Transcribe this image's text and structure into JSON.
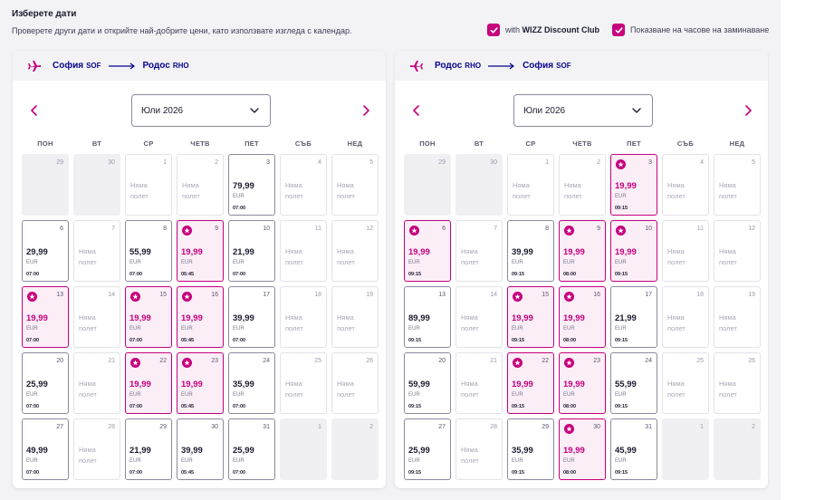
{
  "header": {
    "title": "Изберете дати",
    "subtitle": "Проверете други дати и открийте най-добрите цени, като използвате изгледа с календар.",
    "options": [
      {
        "prefix": "with ",
        "bold": "WIZZ Discount Club",
        "checked": true
      },
      {
        "prefix": "Показване на часове на заминаване",
        "bold": "",
        "checked": true
      }
    ]
  },
  "weekdays": [
    "ПОН",
    "ВТ",
    "СР",
    "ЧЕТВ",
    "ПЕТ",
    "СЪБ",
    "НЕД"
  ],
  "no_flight": [
    "Няма",
    "полет"
  ],
  "colors": {
    "accent": "#c6007e",
    "brand": "#06038d"
  },
  "panels": [
    {
      "from": "София",
      "from_code": "SOF",
      "to": "Родос",
      "to_code": "RHO",
      "plane_icon": "plane-takeoff-icon",
      "month": "Юли 2026",
      "days": [
        {
          "n": "29",
          "other": true
        },
        {
          "n": "30",
          "other": true
        },
        {
          "n": "1"
        },
        {
          "n": "2"
        },
        {
          "n": "3",
          "price": "79,99",
          "cur": "EUR",
          "time": "07:00"
        },
        {
          "n": "4"
        },
        {
          "n": "5"
        },
        {
          "n": "6",
          "price": "29,99",
          "cur": "EUR",
          "time": "07:00"
        },
        {
          "n": "7"
        },
        {
          "n": "8",
          "price": "55,99",
          "cur": "EUR",
          "time": "07:00"
        },
        {
          "n": "9",
          "price": "19,99",
          "cur": "EUR",
          "time": "05:45",
          "disc": true
        },
        {
          "n": "10",
          "price": "21,99",
          "cur": "EUR",
          "time": "07:00"
        },
        {
          "n": "11"
        },
        {
          "n": "12"
        },
        {
          "n": "13",
          "price": "19,99",
          "cur": "EUR",
          "time": "07:00",
          "disc": true
        },
        {
          "n": "14"
        },
        {
          "n": "15",
          "price": "19,99",
          "cur": "EUR",
          "time": "07:00",
          "disc": true
        },
        {
          "n": "16",
          "price": "19,99",
          "cur": "EUR",
          "time": "05:45",
          "disc": true
        },
        {
          "n": "17",
          "price": "39,99",
          "cur": "EUR",
          "time": "07:00"
        },
        {
          "n": "18"
        },
        {
          "n": "19"
        },
        {
          "n": "20",
          "price": "25,99",
          "cur": "EUR",
          "time": "07:00"
        },
        {
          "n": "21"
        },
        {
          "n": "22",
          "price": "19,99",
          "cur": "EUR",
          "time": "07:00",
          "disc": true
        },
        {
          "n": "23",
          "price": "19,99",
          "cur": "EUR",
          "time": "05:45",
          "disc": true
        },
        {
          "n": "24",
          "price": "35,99",
          "cur": "EUR",
          "time": "07:00"
        },
        {
          "n": "25"
        },
        {
          "n": "26"
        },
        {
          "n": "27",
          "price": "49,99",
          "cur": "EUR",
          "time": "07:00"
        },
        {
          "n": "28"
        },
        {
          "n": "29",
          "price": "21,99",
          "cur": "EUR",
          "time": "07:00"
        },
        {
          "n": "30",
          "price": "39,99",
          "cur": "EUR",
          "time": "05:45"
        },
        {
          "n": "31",
          "price": "25,99",
          "cur": "EUR",
          "time": "07:00"
        },
        {
          "n": "1",
          "other": true
        },
        {
          "n": "2",
          "other": true
        }
      ]
    },
    {
      "from": "Родос",
      "from_code": "RHO",
      "to": "София",
      "to_code": "SOF",
      "plane_icon": "plane-landing-icon",
      "month": "Юли 2026",
      "days": [
        {
          "n": "29",
          "other": true
        },
        {
          "n": "30",
          "other": true
        },
        {
          "n": "1"
        },
        {
          "n": "2"
        },
        {
          "n": "3",
          "price": "19,99",
          "cur": "EUR",
          "time": "09:15",
          "disc": true
        },
        {
          "n": "4"
        },
        {
          "n": "5"
        },
        {
          "n": "6",
          "price": "19,99",
          "cur": "EUR",
          "time": "09:15",
          "disc": true
        },
        {
          "n": "7"
        },
        {
          "n": "8",
          "price": "39,99",
          "cur": "EUR",
          "time": "09:15"
        },
        {
          "n": "9",
          "price": "19,99",
          "cur": "EUR",
          "time": "08:00",
          "disc": true
        },
        {
          "n": "10",
          "price": "19,99",
          "cur": "EUR",
          "time": "09:15",
          "disc": true
        },
        {
          "n": "11"
        },
        {
          "n": "12"
        },
        {
          "n": "13",
          "price": "89,99",
          "cur": "EUR",
          "time": "09:15"
        },
        {
          "n": "14"
        },
        {
          "n": "15",
          "price": "19,99",
          "cur": "EUR",
          "time": "09:15",
          "disc": true
        },
        {
          "n": "16",
          "price": "19,99",
          "cur": "EUR",
          "time": "08:00",
          "disc": true
        },
        {
          "n": "17",
          "price": "21,99",
          "cur": "EUR",
          "time": "09:15"
        },
        {
          "n": "18"
        },
        {
          "n": "19"
        },
        {
          "n": "20",
          "price": "59,99",
          "cur": "EUR",
          "time": "09:15"
        },
        {
          "n": "21"
        },
        {
          "n": "22",
          "price": "19,99",
          "cur": "EUR",
          "time": "09:15",
          "disc": true
        },
        {
          "n": "23",
          "price": "19,99",
          "cur": "EUR",
          "time": "08:00",
          "disc": true
        },
        {
          "n": "24",
          "price": "55,99",
          "cur": "EUR",
          "time": "09:15"
        },
        {
          "n": "25"
        },
        {
          "n": "26"
        },
        {
          "n": "27",
          "price": "25,99",
          "cur": "EUR",
          "time": "09:15"
        },
        {
          "n": "28"
        },
        {
          "n": "29",
          "price": "35,99",
          "cur": "EUR",
          "time": "09:15"
        },
        {
          "n": "30",
          "price": "19,99",
          "cur": "EUR",
          "time": "08:00",
          "disc": true
        },
        {
          "n": "31",
          "price": "45,99",
          "cur": "EUR",
          "time": "09:15"
        },
        {
          "n": "1",
          "other": true
        },
        {
          "n": "2",
          "other": true
        }
      ]
    }
  ]
}
